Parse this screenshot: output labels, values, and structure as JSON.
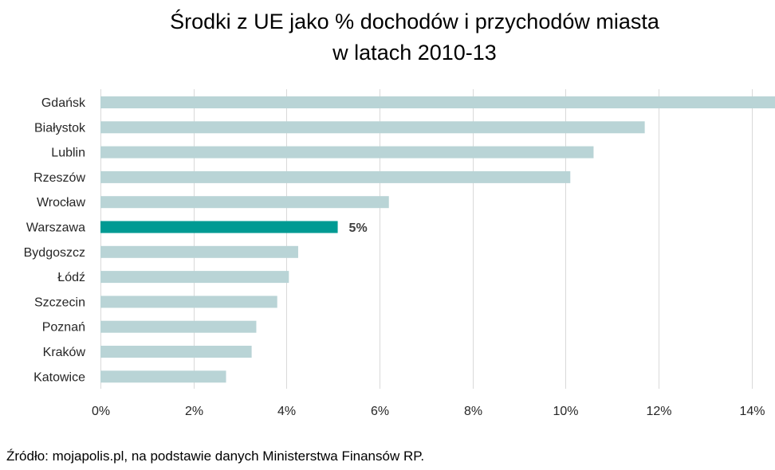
{
  "chart_data": {
    "type": "bar",
    "orientation": "horizontal",
    "title": "Środki z UE jako % dochodów i przychodów miasta",
    "subtitle": "w latach 2010-13",
    "categories": [
      "Gdańsk",
      "Białystok",
      "Lublin",
      "Rzeszów",
      "Wrocław",
      "Warszawa",
      "Bydgoszcz",
      "Łódź",
      "Szczecin",
      "Poznań",
      "Kraków",
      "Katowice"
    ],
    "values": [
      14.5,
      11.7,
      10.6,
      10.1,
      6.2,
      5.1,
      4.25,
      4.05,
      3.8,
      3.35,
      3.25,
      2.7
    ],
    "highlight": {
      "category": "Warszawa",
      "label": "5%"
    },
    "xlim": [
      0,
      14.5
    ],
    "xticks": [
      0,
      2,
      4,
      6,
      8,
      10,
      12,
      14
    ],
    "xtick_labels": [
      "0%",
      "2%",
      "4%",
      "6%",
      "8%",
      "10%",
      "12%",
      "14%"
    ],
    "grid": "vertical",
    "legend": "none",
    "colors": {
      "bar": "#b9d4d6",
      "highlight": "#009a93",
      "grid": "#d9d9d9",
      "text": "#262626"
    }
  },
  "source": "Źródło: mojapolis.pl, na podstawie danych Ministerstwa Finansów RP."
}
